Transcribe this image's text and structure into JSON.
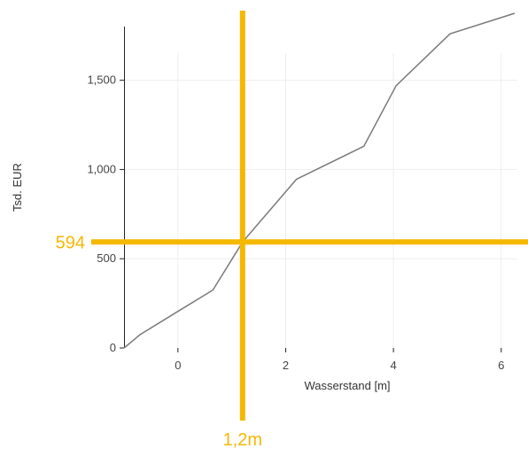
{
  "colors": {
    "highlight": "#F5B800",
    "line": "#7a7a7a",
    "axis": "#222222",
    "grid": "#eeeeee"
  },
  "chart_data": {
    "type": "line",
    "title": "",
    "xlabel": "Wasserstand [m]",
    "ylabel": "Tsd. EUR",
    "xlim": [
      -1.0,
      6.3
    ],
    "ylim": [
      0,
      1900
    ],
    "grid": true,
    "x_ticks": [
      0,
      2,
      4,
      6
    ],
    "y_ticks": [
      0,
      500,
      1000,
      1500
    ],
    "x_tick_labels": [
      "0",
      "2",
      "4",
      "6"
    ],
    "y_tick_labels": [
      "0",
      "500",
      "1,000",
      "1,500"
    ],
    "series": [
      {
        "x": [
          -1.0,
          -0.7,
          0.0,
          0.65,
          1.2,
          2.2,
          3.45,
          4.05,
          5.05,
          6.25
        ],
        "y": [
          0,
          75,
          205,
          325,
          594,
          945,
          1130,
          1470,
          1760,
          1875
        ]
      }
    ],
    "annotations": {
      "x_value": 1.2,
      "y_value": 594,
      "x_label": "1,2m",
      "y_label": "594"
    }
  }
}
